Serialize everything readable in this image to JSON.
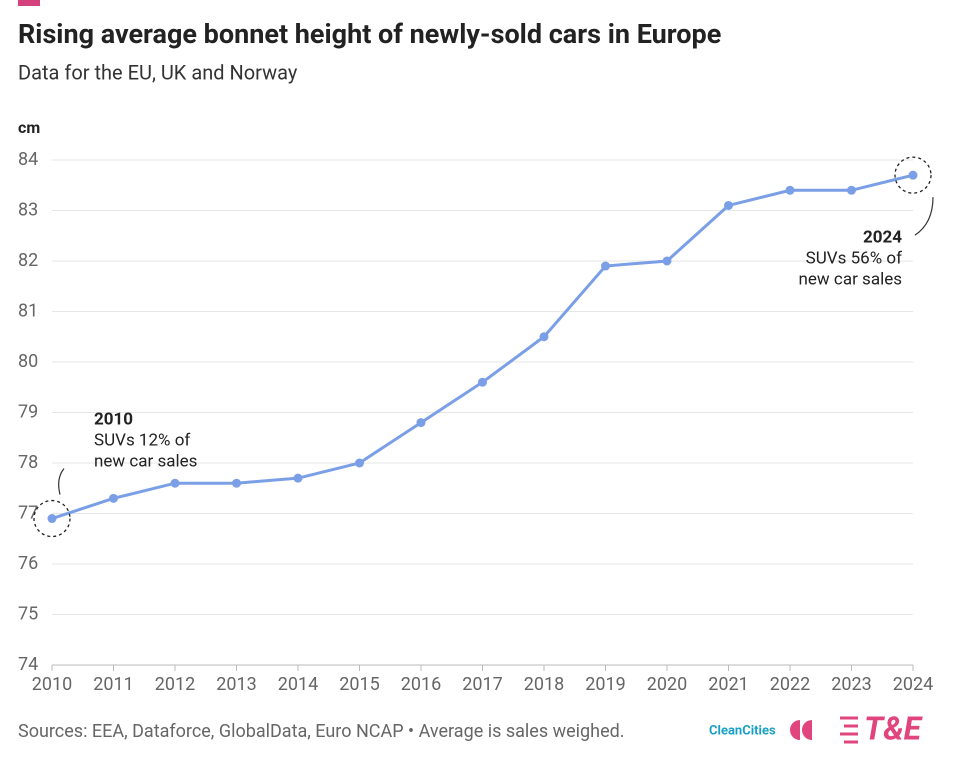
{
  "chart_data": {
    "type": "line",
    "title": "Rising average bonnet height of newly-sold cars in Europe",
    "subtitle": "Data for the EU, UK and Norway",
    "y_label": "cm",
    "x": [
      2010,
      2011,
      2012,
      2013,
      2014,
      2015,
      2016,
      2017,
      2018,
      2019,
      2020,
      2021,
      2022,
      2023,
      2024
    ],
    "series": [
      {
        "name": "Average bonnet height",
        "color": "#7b9fe6",
        "values": [
          76.9,
          77.3,
          77.6,
          77.6,
          77.7,
          78.0,
          78.8,
          79.6,
          80.5,
          81.9,
          82.0,
          83.1,
          83.4,
          83.4,
          83.7
        ]
      }
    ],
    "xlim": [
      2010,
      2024
    ],
    "xticks": [
      2010,
      2011,
      2012,
      2013,
      2014,
      2015,
      2016,
      2017,
      2018,
      2019,
      2020,
      2021,
      2022,
      2023,
      2024
    ],
    "ylim": [
      74,
      84
    ],
    "yticks": [
      74,
      75,
      76,
      77,
      78,
      79,
      80,
      81,
      82,
      83,
      84
    ],
    "grid": true,
    "annotations": [
      {
        "label": "2010",
        "lines": [
          "SUVs 12% of",
          "new car sales"
        ]
      },
      {
        "label": "2024",
        "lines": [
          "SUVs 56% of",
          "new car sales"
        ]
      }
    ],
    "source": "Sources: EEA, Dataforce, GlobalData, Euro NCAP • Average is sales weighed.",
    "logos": [
      "CleanCities",
      "T&E"
    ]
  }
}
